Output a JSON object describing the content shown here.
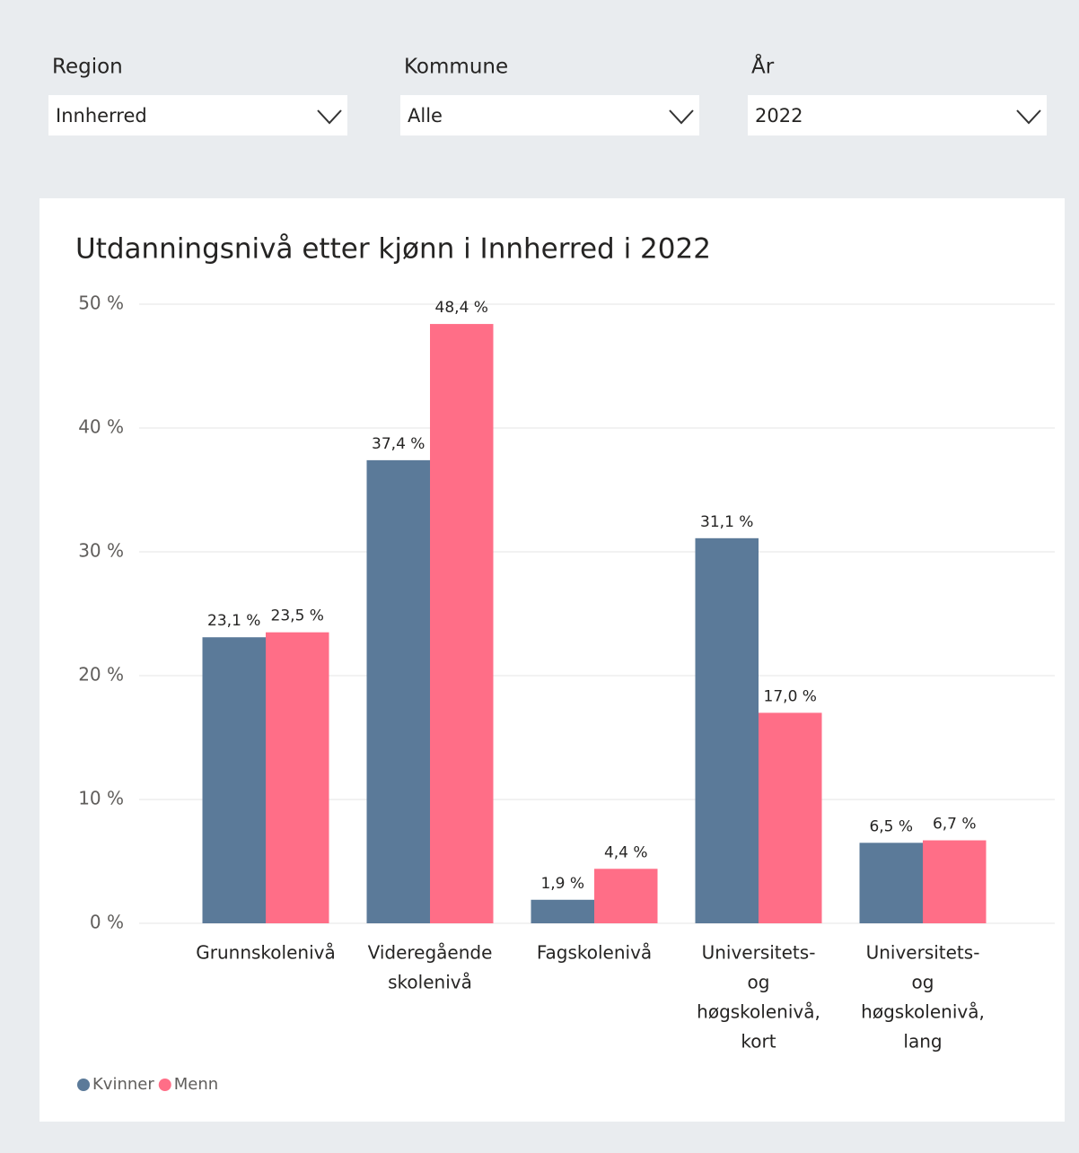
{
  "filters": [
    {
      "label": "Region",
      "value": "Innherred"
    },
    {
      "label": "Kommune",
      "value": "Alle"
    },
    {
      "label": "År",
      "value": "2022"
    }
  ],
  "chart_data": {
    "type": "bar",
    "title": "Utdanningsnivå etter kjønn i Innherred i 2022",
    "categories": [
      [
        "Grunnskolenivå"
      ],
      [
        "Videregående",
        "skolenivå"
      ],
      [
        "Fagskolenivå"
      ],
      [
        "Universitets-",
        "og",
        "høgskolenivå,",
        "kort"
      ],
      [
        "Universitets-",
        "og",
        "høgskolenivå,",
        "lang"
      ]
    ],
    "series": [
      {
        "name": "Kvinner",
        "color": "#5b7a99",
        "values": [
          23.1,
          37.4,
          1.9,
          31.1,
          6.5
        ],
        "value_labels": [
          "23,1 %",
          "37,4 %",
          "1,9 %",
          "31,1 %",
          "6,5 %"
        ]
      },
      {
        "name": "Menn",
        "color": "#ff6e87",
        "values": [
          23.5,
          48.4,
          4.4,
          17.0,
          6.7
        ],
        "value_labels": [
          "23,5 %",
          "48,4 %",
          "4,4 %",
          "17,0 %",
          "6,7 %"
        ]
      }
    ],
    "ylim": [
      0,
      50
    ],
    "yticks": [
      {
        "value": 0,
        "label": "0 %"
      },
      {
        "value": 10,
        "label": "10 %"
      },
      {
        "value": 20,
        "label": "20 %"
      },
      {
        "value": 30,
        "label": "30 %"
      },
      {
        "value": 40,
        "label": "40 %"
      },
      {
        "value": 50,
        "label": "50 %"
      }
    ],
    "grid": true,
    "legend": "bottom-left"
  }
}
